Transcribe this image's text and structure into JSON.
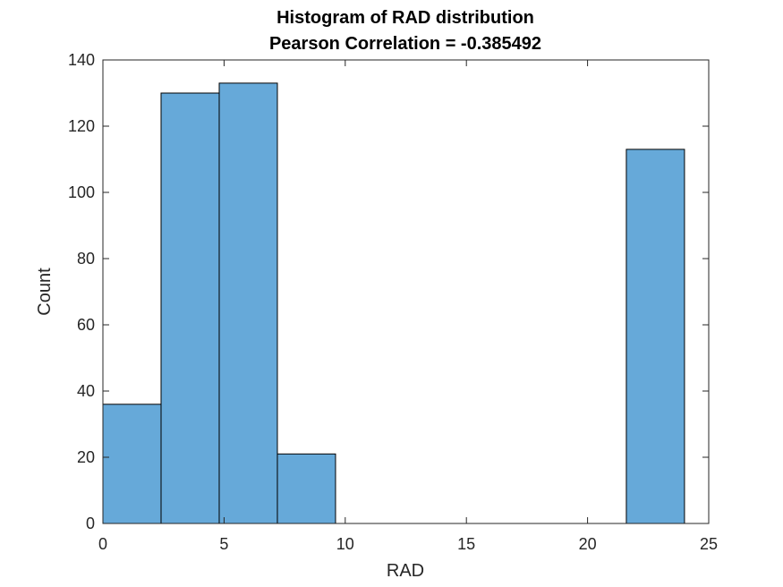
{
  "chart_data": {
    "type": "bar",
    "title": "Histogram of RAD distribution",
    "subtitle": "Pearson Correlation = -0.385492",
    "xlabel": "RAD",
    "ylabel": "Count",
    "xlim": [
      0,
      25
    ],
    "ylim": [
      0,
      140
    ],
    "x_ticks": [
      0,
      5,
      10,
      15,
      20,
      25
    ],
    "y_ticks": [
      0,
      20,
      40,
      60,
      80,
      100,
      120,
      140
    ],
    "bin_edges": [
      0,
      2.4,
      4.8,
      7.2,
      9.6,
      12.0,
      14.4,
      16.8,
      19.2,
      21.6,
      24.0
    ],
    "values": [
      36,
      130,
      133,
      21,
      0,
      0,
      0,
      0,
      0,
      113
    ],
    "grid": false,
    "bar_color": "#66a9d9",
    "edge_color": "#000000"
  }
}
